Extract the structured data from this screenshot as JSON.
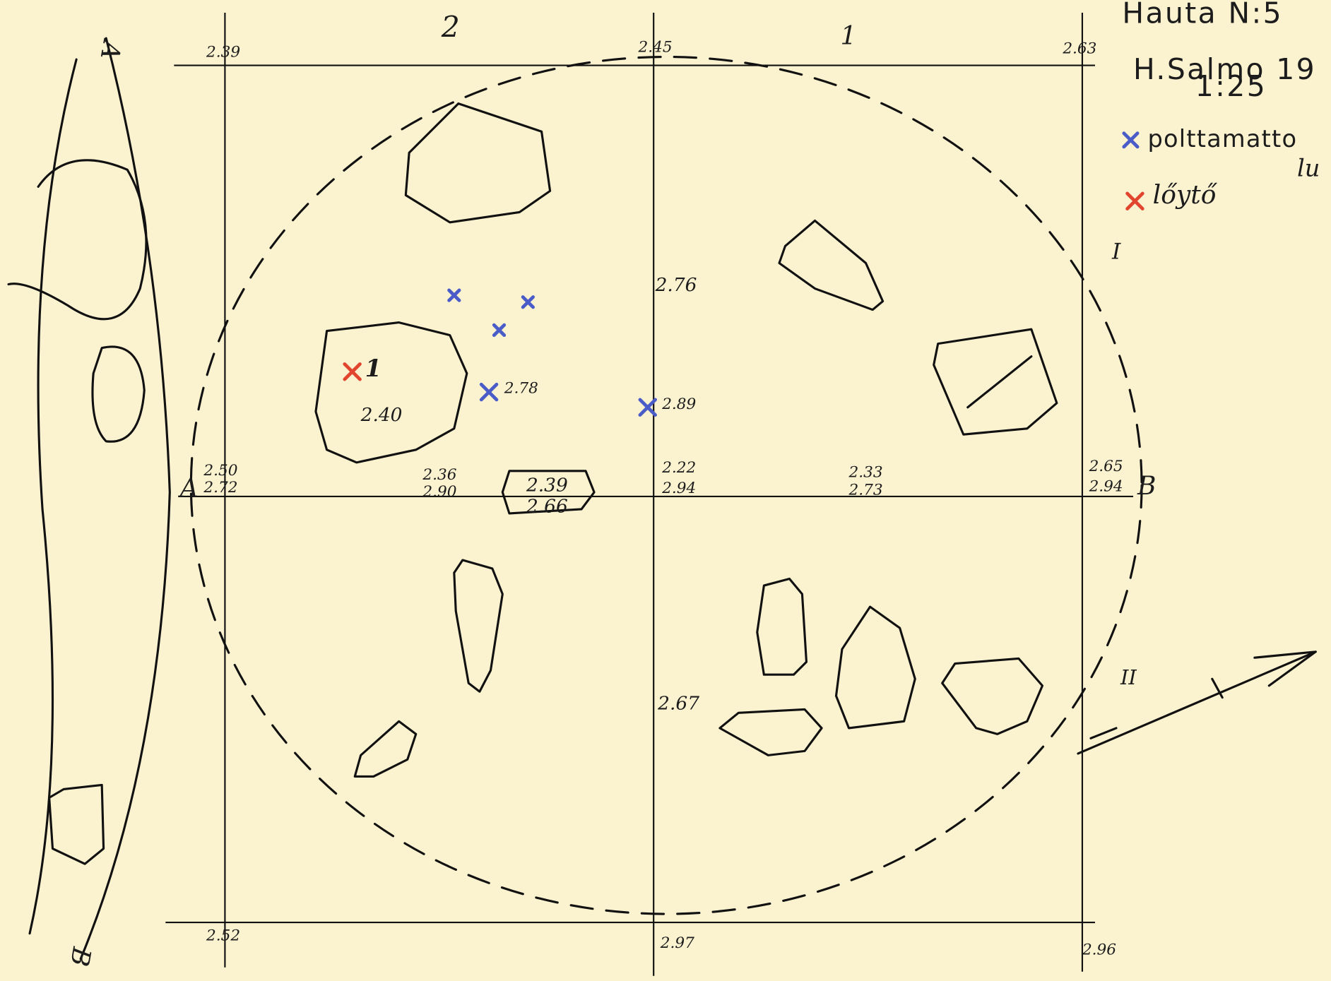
{
  "header": {
    "title": "Hauta N:5",
    "author": "H.Salmo 19",
    "scale": "1:25"
  },
  "legend": [
    {
      "label": "polttamatto",
      "label_cont": "lu",
      "color": "#4a5cc8"
    },
    {
      "label": "lőytő",
      "color": "#e2452e"
    }
  ],
  "grid_labels": {
    "column_2": "2",
    "column_1": "1",
    "section_I": "I",
    "section_II": "II",
    "point_A": "A",
    "point_B": "B",
    "profile_A": "A",
    "profile_B": "B"
  },
  "find_label": "1",
  "elevations": [
    "2.39",
    "2.45",
    "2.63",
    "2.76",
    "2.78",
    "2.89",
    "2.40",
    "2.50",
    "2.72",
    "2.36",
    "2.90",
    "2.39",
    "2.66",
    "2.22",
    "2.94",
    "2.33",
    "2.73",
    "2.65",
    "2.94",
    "2.67",
    "2.52",
    "2.97",
    "2.96"
  ]
}
